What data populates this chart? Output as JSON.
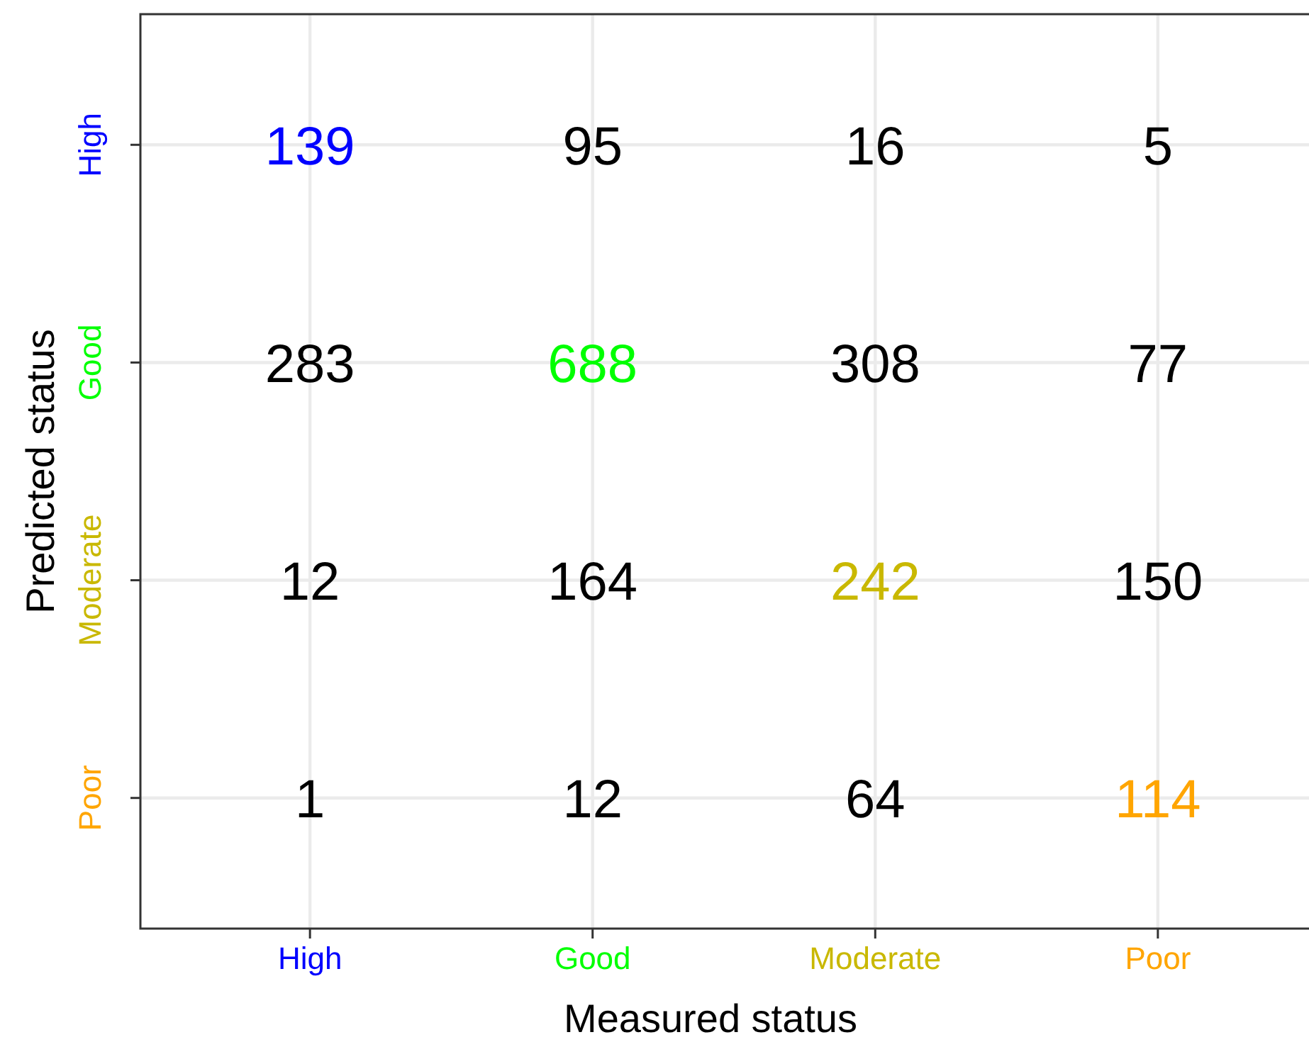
{
  "chart_data": {
    "type": "heatmap",
    "xlabel": "Measured status",
    "ylabel": "Predicted status",
    "categories": [
      "High",
      "Good",
      "Moderate",
      "Poor"
    ],
    "y_categories": [
      "High",
      "Good",
      "Moderate",
      "Poor"
    ],
    "colors": [
      "#0000ff",
      "#00ff00",
      "#c9b800",
      "#ffa500"
    ],
    "cells": [
      [
        139,
        95,
        16,
        5
      ],
      [
        283,
        688,
        308,
        77
      ],
      [
        12,
        164,
        242,
        150
      ],
      [
        1,
        12,
        64,
        114
      ]
    ],
    "grid": true,
    "data_labels": true
  }
}
